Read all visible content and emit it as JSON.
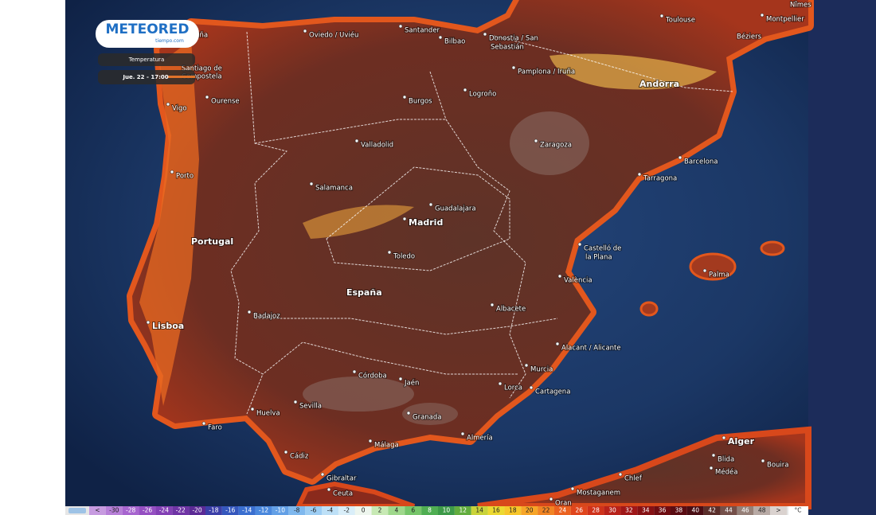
{
  "header": {
    "logo": "METEORED",
    "logo_sub": "tiempo.com",
    "variable": "Temperatura",
    "datetime": "Jue. 22 - 17:00"
  },
  "cities": [
    "Toulouse",
    "Montpellier",
    "Nîmes",
    "Béziers",
    "Oviedo / Uviéu",
    "Santander",
    "Bilbao",
    "Donostia / San",
    "Sebastián",
    "A Coruña",
    "Santiago de",
    "Compostela",
    "Vigo",
    "Ourense",
    "Pamplona / Iruña",
    "Logroño",
    "Burgos",
    "Andorra",
    "Zaragoza",
    "Valladolid",
    "Barcelona",
    "Tarragona",
    "Porto",
    "Salamanca",
    "Guadalajara",
    "Madrid",
    "Portugal",
    "Castelló de",
    "la Plana",
    "Toledo",
    "Palma",
    "València",
    "España",
    "Albacete",
    "Lisboa",
    "Badajoz",
    "Alacant / Alicante",
    "Murcia",
    "Córdoba",
    "Jaén",
    "Lorca",
    "Cartagena",
    "Sevilla",
    "Huelva",
    "Granada",
    "Faro",
    "Almería",
    "Alger",
    "Málaga",
    "Cádiz",
    "Blida",
    "Médéa",
    "Chlef",
    "Bouira",
    "Gibraltar",
    "Ceuta",
    "Mostaganem",
    "Oran"
  ],
  "legend": {
    "labels": [
      "<",
      -30,
      -28,
      -26,
      -24,
      -22,
      -20,
      -18,
      -16,
      -14,
      -12,
      -10,
      -8,
      -6,
      -4,
      -2,
      0,
      2,
      4,
      6,
      8,
      10,
      12,
      14,
      16,
      18,
      20,
      22,
      24,
      26,
      28,
      30,
      32,
      34,
      36,
      38,
      40,
      42,
      44,
      46,
      48,
      ">"
    ],
    "colors": [
      "#c79be0",
      "#b77fd8",
      "#a765cf",
      "#954fc2",
      "#8340b5",
      "#6f34a5",
      "#5b2a95",
      "#3b3fa8",
      "#3557bd",
      "#3a6fd0",
      "#4a88dd",
      "#63a0e6",
      "#7fb8ee",
      "#9dcdf3",
      "#bde0f7",
      "#d9eef9",
      "#eef6ee",
      "#c7e9b4",
      "#9fd88c",
      "#76c56a",
      "#4fae52",
      "#3d9a48",
      "#62ad3e",
      "#c9d33a",
      "#ecd932",
      "#f7c62b",
      "#f6a528",
      "#f18424",
      "#ea6220",
      "#e0461d",
      "#cf321b",
      "#b8221a",
      "#9f1718",
      "#861114",
      "#6e0d12",
      "#5a0c12",
      "#4a0e14",
      "#5a2e2a",
      "#75504a",
      "#968078",
      "#b8aaa5",
      "#dad2cf"
    ],
    "unit": "°C"
  }
}
